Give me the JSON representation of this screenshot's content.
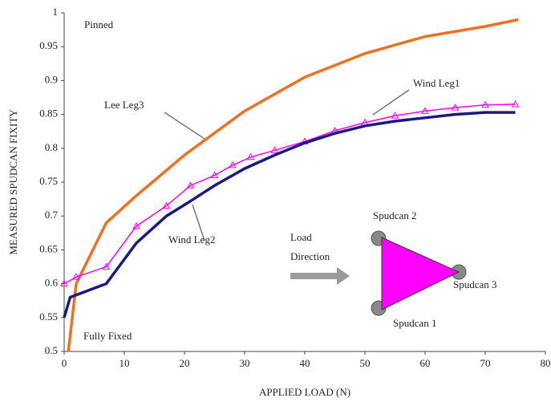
{
  "chart_data": {
    "type": "line",
    "xlabel": "APPLIED LOAD (N)",
    "ylabel": "MEASURED SPUDCAN FIXITY",
    "xlim": [
      0,
      80
    ],
    "xticks": [
      0,
      10,
      20,
      30,
      40,
      50,
      60,
      70,
      80
    ],
    "ylim": [
      0.5,
      1
    ],
    "yticks": [
      0.5,
      0.55,
      0.6,
      0.65,
      0.7,
      0.75,
      0.8,
      0.85,
      0.9,
      0.95,
      1
    ],
    "annotations": [
      "Pinned",
      "Fully Fixed",
      "Lee Leg3",
      "Wind Leg1",
      "Wind Leg2",
      "Load",
      "Direction",
      "Spudcan 2",
      "Spudcan 3",
      "Spudcan 1"
    ],
    "series": [
      {
        "name": "Lee Leg3",
        "color": "#f07020",
        "x": [
          0.7,
          2,
          7,
          12,
          20,
          30,
          40,
          50,
          60,
          70,
          75.5
        ],
        "values": [
          0.5,
          0.6,
          0.69,
          0.73,
          0.79,
          0.855,
          0.905,
          0.94,
          0.965,
          0.98,
          0.99
        ]
      },
      {
        "name": "Wind Leg1",
        "color": "#ff00ff",
        "marker": "triangle",
        "x": [
          0,
          2,
          7,
          12,
          17,
          21,
          25,
          28,
          31,
          35,
          40,
          45,
          50,
          55,
          60,
          65,
          70,
          75
        ],
        "values": [
          0.6,
          0.61,
          0.625,
          0.685,
          0.715,
          0.745,
          0.76,
          0.775,
          0.787,
          0.797,
          0.81,
          0.826,
          0.838,
          0.848,
          0.855,
          0.86,
          0.864,
          0.865
        ]
      },
      {
        "name": "Wind Leg2",
        "color": "#1a1a80",
        "x": [
          0,
          1,
          7,
          12,
          17,
          21,
          25,
          30,
          35,
          40,
          45,
          50,
          55,
          60,
          65,
          70,
          75
        ],
        "values": [
          0.55,
          0.58,
          0.6,
          0.66,
          0.7,
          0.722,
          0.745,
          0.77,
          0.79,
          0.808,
          0.822,
          0.833,
          0.84,
          0.845,
          0.85,
          0.853,
          0.853
        ]
      }
    ]
  }
}
